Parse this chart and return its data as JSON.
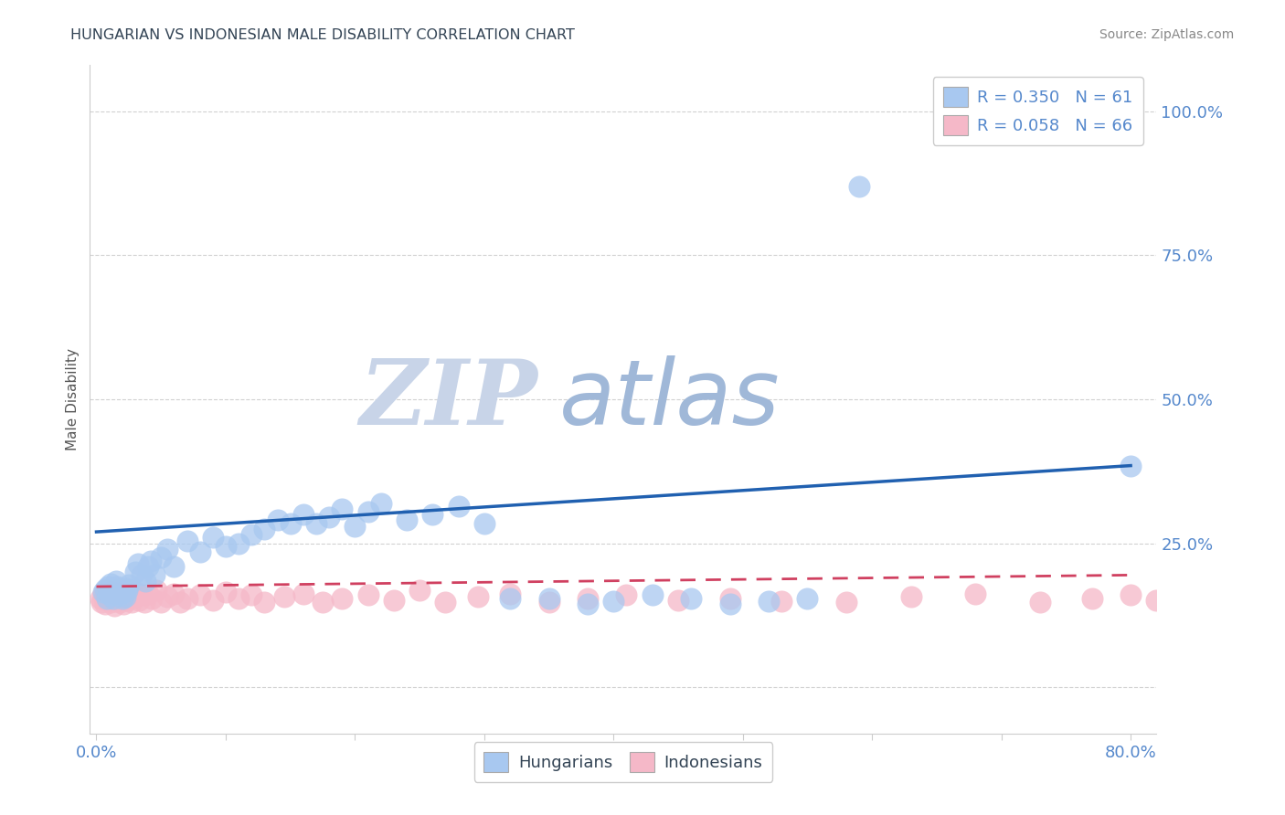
{
  "title": "HUNGARIAN VS INDONESIAN MALE DISABILITY CORRELATION CHART",
  "source": "Source: ZipAtlas.com",
  "ylabel": "Male Disability",
  "xlim": [
    -0.005,
    0.82
  ],
  "ylim": [
    -0.08,
    1.08
  ],
  "yticks": [
    0.0,
    0.25,
    0.5,
    0.75,
    1.0
  ],
  "ytick_labels": [
    "",
    "25.0%",
    "50.0%",
    "75.0%",
    "100.0%"
  ],
  "xtick_vals": [
    0.0,
    0.1,
    0.2,
    0.3,
    0.4,
    0.5,
    0.6,
    0.7,
    0.8
  ],
  "xtick_labels": [
    "0.0%",
    "",
    "",
    "",
    "",
    "",
    "",
    "",
    "80.0%"
  ],
  "hungarian_R": 0.35,
  "hungarian_N": 61,
  "indonesian_R": 0.058,
  "indonesian_N": 66,
  "hungarian_color": "#A8C8F0",
  "indonesian_color": "#F5B8C8",
  "hungarian_line_color": "#2060B0",
  "indonesian_line_color": "#D04060",
  "watermark_zip": "ZIP",
  "watermark_atlas": "atlas",
  "watermark_color_zip": "#C8D4E8",
  "watermark_color_atlas": "#A0B8D8",
  "background_color": "#FFFFFF",
  "grid_color": "#CCCCCC",
  "tick_color": "#5588CC",
  "title_color": "#334455",
  "source_color": "#888888",
  "ylabel_color": "#555555",
  "hu_line_y0": 0.27,
  "hu_line_y1": 0.385,
  "id_line_y0": 0.175,
  "id_line_y1": 0.195,
  "hungarian_x": [
    0.005,
    0.007,
    0.008,
    0.009,
    0.01,
    0.011,
    0.012,
    0.013,
    0.014,
    0.015,
    0.016,
    0.017,
    0.018,
    0.019,
    0.02,
    0.021,
    0.022,
    0.023,
    0.024,
    0.025,
    0.03,
    0.032,
    0.035,
    0.038,
    0.04,
    0.042,
    0.045,
    0.05,
    0.055,
    0.06,
    0.07,
    0.08,
    0.09,
    0.1,
    0.11,
    0.12,
    0.13,
    0.14,
    0.15,
    0.16,
    0.17,
    0.18,
    0.19,
    0.2,
    0.21,
    0.22,
    0.24,
    0.26,
    0.28,
    0.3,
    0.32,
    0.35,
    0.38,
    0.4,
    0.43,
    0.46,
    0.49,
    0.52,
    0.55,
    0.59,
    0.8
  ],
  "hungarian_y": [
    0.165,
    0.17,
    0.155,
    0.175,
    0.16,
    0.18,
    0.165,
    0.155,
    0.17,
    0.185,
    0.175,
    0.165,
    0.16,
    0.17,
    0.155,
    0.165,
    0.158,
    0.172,
    0.168,
    0.178,
    0.2,
    0.215,
    0.195,
    0.185,
    0.21,
    0.22,
    0.195,
    0.225,
    0.24,
    0.21,
    0.255,
    0.235,
    0.26,
    0.245,
    0.25,
    0.265,
    0.275,
    0.29,
    0.285,
    0.3,
    0.285,
    0.295,
    0.31,
    0.28,
    0.305,
    0.32,
    0.29,
    0.3,
    0.315,
    0.285,
    0.155,
    0.155,
    0.145,
    0.15,
    0.16,
    0.155,
    0.145,
    0.15,
    0.155,
    0.87,
    0.385
  ],
  "indonesian_x": [
    0.003,
    0.004,
    0.005,
    0.006,
    0.007,
    0.008,
    0.009,
    0.01,
    0.011,
    0.012,
    0.013,
    0.014,
    0.015,
    0.016,
    0.017,
    0.018,
    0.019,
    0.02,
    0.021,
    0.022,
    0.023,
    0.024,
    0.025,
    0.027,
    0.029,
    0.031,
    0.033,
    0.035,
    0.037,
    0.04,
    0.043,
    0.046,
    0.05,
    0.055,
    0.06,
    0.065,
    0.07,
    0.08,
    0.09,
    0.1,
    0.11,
    0.12,
    0.13,
    0.145,
    0.16,
    0.175,
    0.19,
    0.21,
    0.23,
    0.25,
    0.27,
    0.295,
    0.32,
    0.35,
    0.38,
    0.41,
    0.45,
    0.49,
    0.53,
    0.58,
    0.63,
    0.68,
    0.73,
    0.77,
    0.8,
    0.82
  ],
  "indonesian_y": [
    0.155,
    0.148,
    0.162,
    0.158,
    0.145,
    0.168,
    0.152,
    0.16,
    0.148,
    0.165,
    0.155,
    0.142,
    0.16,
    0.152,
    0.17,
    0.148,
    0.158,
    0.162,
    0.145,
    0.155,
    0.168,
    0.152,
    0.16,
    0.148,
    0.158,
    0.165,
    0.152,
    0.16,
    0.148,
    0.162,
    0.155,
    0.168,
    0.148,
    0.158,
    0.162,
    0.148,
    0.155,
    0.16,
    0.152,
    0.165,
    0.155,
    0.16,
    0.148,
    0.158,
    0.162,
    0.148,
    0.155,
    0.16,
    0.152,
    0.168,
    0.148,
    0.158,
    0.162,
    0.148,
    0.155,
    0.16,
    0.152,
    0.155,
    0.15,
    0.148,
    0.158,
    0.162,
    0.148,
    0.155,
    0.16,
    0.152
  ]
}
